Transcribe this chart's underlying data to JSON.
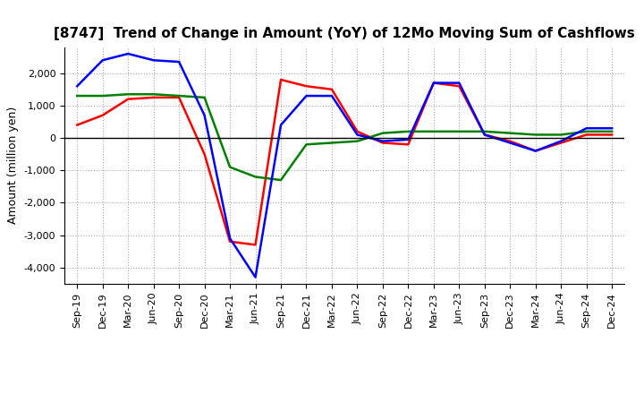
{
  "title": "[8747]  Trend of Change in Amount (YoY) of 12Mo Moving Sum of Cashflows",
  "ylabel": "Amount (million yen)",
  "xlabels": [
    "Sep-19",
    "Dec-19",
    "Mar-20",
    "Jun-20",
    "Sep-20",
    "Dec-20",
    "Mar-21",
    "Jun-21",
    "Sep-21",
    "Dec-21",
    "Mar-22",
    "Jun-22",
    "Sep-22",
    "Dec-22",
    "Mar-23",
    "Jun-23",
    "Sep-23",
    "Dec-23",
    "Mar-24",
    "Jun-24",
    "Sep-24",
    "Dec-24"
  ],
  "ylim": [
    -4500,
    2800
  ],
  "yticks": [
    -4000,
    -3000,
    -2000,
    -1000,
    0,
    1000,
    2000
  ],
  "operating": [
    400,
    700,
    1200,
    1250,
    1250,
    -500,
    -3200,
    -3300,
    1800,
    1600,
    1500,
    200,
    -150,
    -200,
    1700,
    1600,
    100,
    -100,
    -400,
    -150,
    100,
    100
  ],
  "investing": [
    1300,
    1300,
    1350,
    1350,
    1300,
    1250,
    -900,
    -1200,
    -1300,
    -200,
    -150,
    -100,
    150,
    200,
    200,
    200,
    200,
    150,
    100,
    100,
    200,
    200
  ],
  "free": [
    1600,
    2400,
    2600,
    2400,
    2350,
    700,
    -3100,
    -4300,
    400,
    1300,
    1300,
    100,
    -100,
    -50,
    1700,
    1700,
    100,
    -150,
    -400,
    -100,
    300,
    300
  ],
  "operating_color": "#ff0000",
  "investing_color": "#008000",
  "free_color": "#0000ff",
  "background_color": "#ffffff",
  "grid_color": "#aaaaaa"
}
